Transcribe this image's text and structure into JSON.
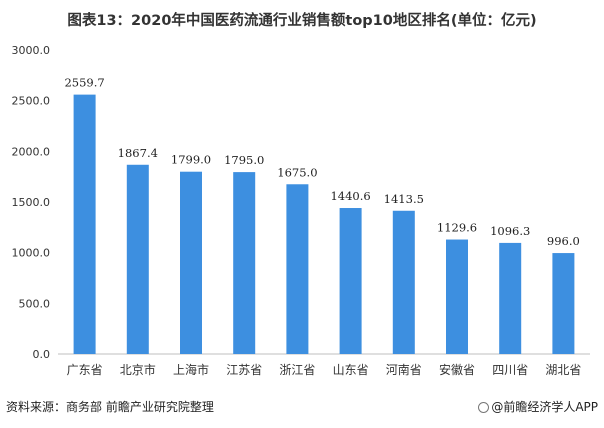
{
  "chart_data": {
    "type": "bar",
    "title": "图表13：2020年中国医药流通行业销售额top10地区排名(单位：亿元)",
    "categories": [
      "广东省",
      "北京市",
      "上海市",
      "江苏省",
      "浙江省",
      "山东省",
      "河南省",
      "安徽省",
      "四川省",
      "湖北省"
    ],
    "values": [
      2559.7,
      1867.4,
      1799.0,
      1795.0,
      1675.0,
      1440.6,
      1413.5,
      1129.6,
      1096.3,
      996.0
    ],
    "value_labels": [
      "2559.7",
      "1867.4",
      "1799.0",
      "1795.0",
      "1675.0",
      "1440.6",
      "1413.5",
      "1129.6",
      "1096.3",
      "996.0"
    ],
    "yticks": [
      "0.0",
      "500.0",
      "1000.0",
      "1500.0",
      "2000.0",
      "2500.0",
      "3000.0"
    ],
    "ylim": [
      0,
      3000
    ],
    "xlabel": "",
    "ylabel": "",
    "grid": false,
    "legend": "none",
    "bar_color": "#3d8fe0",
    "axis_color": "#bfbfbf"
  },
  "footer": {
    "source": "资料来源：商务部 前瞻产业研究院整理",
    "brand": "@前瞻经济学人APP"
  }
}
